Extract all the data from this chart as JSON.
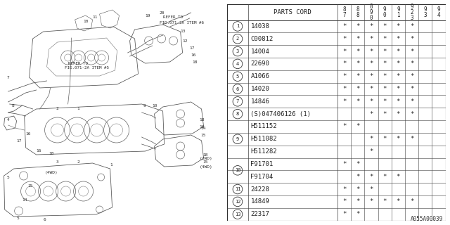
{
  "diagram_code": "A055A00039",
  "bg_color": "#ffffff",
  "header_cols": [
    "8\n7",
    "8\n8",
    "8\n9\n0",
    "9\n0",
    "9\n1",
    "9\n2\n3",
    "9\n3",
    "9\n4"
  ],
  "rows": [
    {
      "num": "1",
      "part": "14038",
      "marks": [
        1,
        1,
        1,
        1,
        1,
        1,
        0,
        0
      ],
      "circle_row": 0
    },
    {
      "num": "2",
      "part": "C00812",
      "marks": [
        1,
        1,
        1,
        1,
        1,
        1,
        0,
        0
      ],
      "circle_row": 0
    },
    {
      "num": "3",
      "part": "14004",
      "marks": [
        1,
        1,
        1,
        1,
        1,
        1,
        0,
        0
      ],
      "circle_row": 0
    },
    {
      "num": "4",
      "part": "22690",
      "marks": [
        1,
        1,
        1,
        1,
        1,
        1,
        0,
        0
      ],
      "circle_row": 0
    },
    {
      "num": "5",
      "part": "A1066",
      "marks": [
        1,
        1,
        1,
        1,
        1,
        1,
        0,
        0
      ],
      "circle_row": 0
    },
    {
      "num": "6",
      "part": "14020",
      "marks": [
        1,
        1,
        1,
        1,
        1,
        1,
        0,
        0
      ],
      "circle_row": 0
    },
    {
      "num": "7",
      "part": "14846",
      "marks": [
        1,
        1,
        1,
        1,
        1,
        1,
        0,
        0
      ],
      "circle_row": 0
    },
    {
      "num": "8",
      "part": "(S)047406126 (1)",
      "marks": [
        0,
        0,
        1,
        1,
        1,
        1,
        0,
        0
      ],
      "circle_row": 0
    },
    {
      "num": "",
      "part": "H511152",
      "marks": [
        1,
        1,
        0,
        0,
        0,
        0,
        0,
        0
      ],
      "circle_row": -1
    },
    {
      "num": "9",
      "part": "H511082",
      "marks": [
        0,
        0,
        1,
        1,
        1,
        1,
        0,
        0
      ],
      "circle_row": 0
    },
    {
      "num": "",
      "part": "H511282",
      "marks": [
        0,
        0,
        1,
        0,
        0,
        0,
        0,
        0
      ],
      "circle_row": -1
    },
    {
      "num": "",
      "part": "F91701",
      "marks": [
        1,
        1,
        0,
        0,
        0,
        0,
        0,
        0
      ],
      "circle_row": -1
    },
    {
      "num": "10",
      "part": "F91704",
      "marks": [
        0,
        1,
        1,
        1,
        1,
        0,
        0,
        0
      ],
      "circle_row": -1
    },
    {
      "num": "11",
      "part": "24228",
      "marks": [
        1,
        1,
        1,
        0,
        0,
        0,
        0,
        0
      ],
      "circle_row": 0
    },
    {
      "num": "12",
      "part": "14849",
      "marks": [
        1,
        1,
        1,
        1,
        1,
        1,
        0,
        0
      ],
      "circle_row": 0
    },
    {
      "num": "13",
      "part": "22317",
      "marks": [
        1,
        1,
        0,
        0,
        0,
        0,
        0,
        0
      ],
      "circle_row": 0
    }
  ],
  "font_size": 6.5,
  "header_font_size": 6.5,
  "year_font_size": 5.5
}
